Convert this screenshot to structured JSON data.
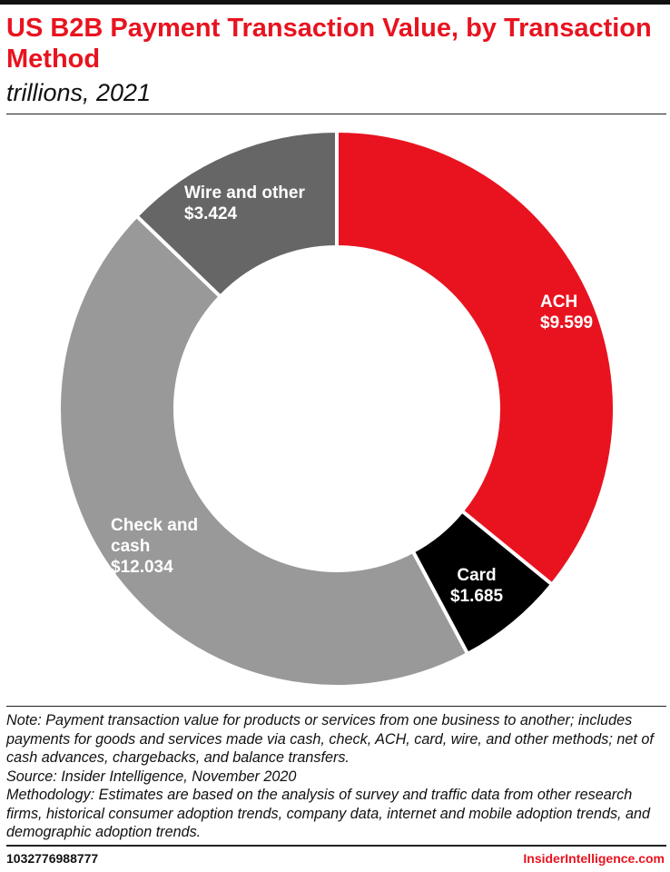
{
  "header": {
    "title": "US B2B Payment Transaction Value, by Transaction Method",
    "subtitle": "trillions, 2021"
  },
  "chart_data": {
    "type": "pie",
    "title": "US B2B Payment Transaction Value, by Transaction Method",
    "subtitle": "trillions, 2021",
    "donut": true,
    "slices": [
      {
        "label_lines": [
          "ACH"
        ],
        "value_label": "$9.599",
        "value": 9.599,
        "color": "#e8131f"
      },
      {
        "label_lines": [
          "Card"
        ],
        "value_label": "$1.685",
        "value": 1.685,
        "color": "#000000"
      },
      {
        "label_lines": [
          "Check and",
          "cash"
        ],
        "value_label": "$12.034",
        "value": 12.034,
        "color": "#999999"
      },
      {
        "label_lines": [
          "Wire and other"
        ],
        "value_label": "$3.424",
        "value": 3.424,
        "color": "#666666"
      }
    ]
  },
  "notes": {
    "note": "Note: Payment transaction value for products or services from one business to another; includes payments for goods and services made via cash, check, ACH, card, wire, and other methods; net of cash advances, chargebacks, and balance transfers.",
    "source": "Source: Insider Intelligence, November 2020",
    "methodology": "Methodology: Estimates are based on the analysis of survey and traffic data from other research firms, historical consumer adoption trends, company data, internet and mobile adoption trends, and demographic adoption trends."
  },
  "footer": {
    "id": "1032776988777",
    "brand": "InsiderIntelligence.com"
  }
}
